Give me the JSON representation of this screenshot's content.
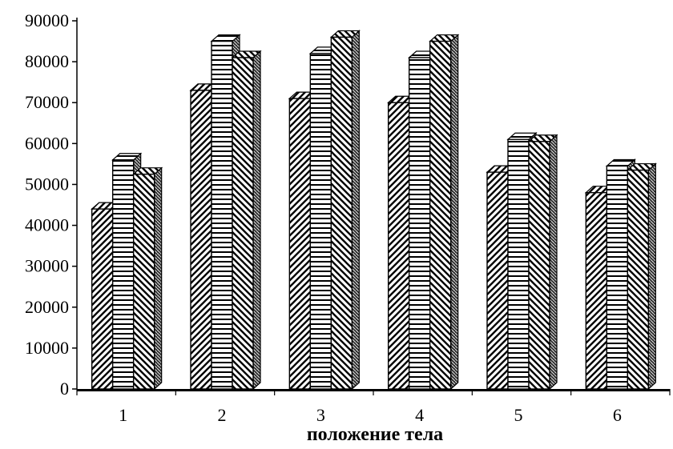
{
  "chart_data": {
    "type": "bar",
    "style": "3d-clustered-hatched",
    "title": "",
    "xlabel": "положение тела",
    "ylabel": "",
    "ylim": [
      0,
      90000
    ],
    "yticks": [
      0,
      10000,
      20000,
      30000,
      40000,
      50000,
      60000,
      70000,
      80000,
      90000
    ],
    "ytick_labels": [
      "0",
      "10000",
      "20000",
      "30000",
      "40000",
      "50000",
      "60000",
      "70000",
      "80000",
      "90000"
    ],
    "categories": [
      "1",
      "2",
      "3",
      "4",
      "5",
      "6"
    ],
    "series": [
      {
        "pattern": "diagonal-forward",
        "values": [
          44000,
          73000,
          71000,
          70000,
          53000,
          48000
        ]
      },
      {
        "pattern": "horizontal",
        "values": [
          56000,
          85000,
          82000,
          81000,
          61000,
          54500
        ]
      },
      {
        "pattern": "diagonal-backward",
        "values": [
          52500,
          81000,
          86000,
          85000,
          60500,
          53500
        ]
      }
    ],
    "grid": false,
    "legend": "none",
    "colors": {
      "bar_fill": "#ffffff",
      "stroke": "#000000",
      "side_fill": "#000000",
      "background": "#ffffff"
    }
  }
}
